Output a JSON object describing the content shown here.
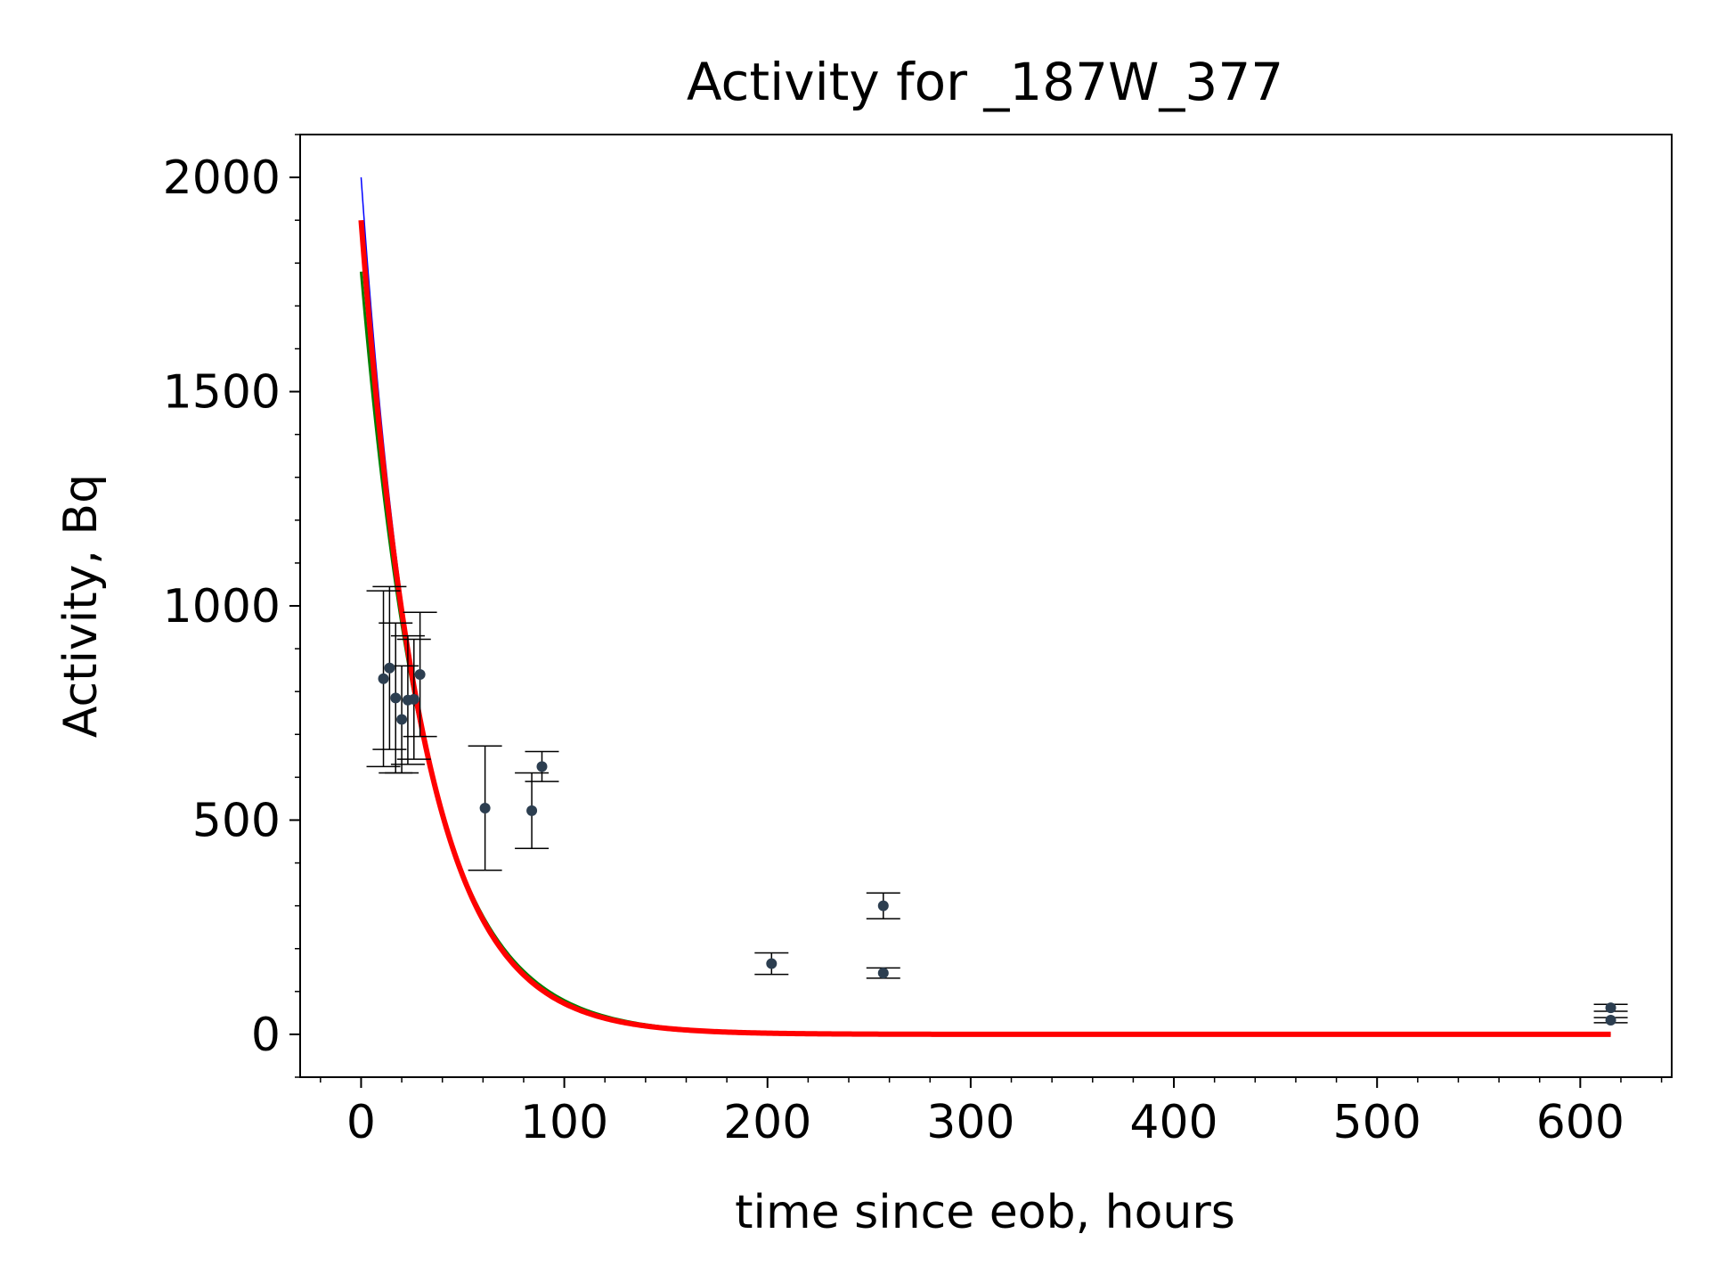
{
  "chart_data": {
    "type": "scatter",
    "title": "Activity for _187W_377",
    "xlabel": "time since eob, hours",
    "ylabel": "Activity, Bq",
    "xlim": [
      -30,
      645
    ],
    "ylim": [
      -100,
      2100
    ],
    "xticks": [
      0,
      100,
      200,
      300,
      400,
      500,
      600
    ],
    "xtick_labels": [
      "0",
      "100",
      "200",
      "300",
      "400",
      "500",
      "600"
    ],
    "yticks": [
      0,
      500,
      1000,
      1500,
      2000
    ],
    "ytick_labels": [
      "0",
      "500",
      "1000",
      "1500",
      "2000"
    ],
    "grid": false,
    "legend": "none",
    "measurements": {
      "color": "#2c3e50",
      "points": [
        {
          "x": 11,
          "y": 830,
          "err": 205
        },
        {
          "x": 14,
          "y": 855,
          "err": 190
        },
        {
          "x": 17,
          "y": 785,
          "err": 175
        },
        {
          "x": 20,
          "y": 735,
          "err": 125
        },
        {
          "x": 23,
          "y": 780,
          "err": 150
        },
        {
          "x": 26,
          "y": 782,
          "err": 140
        },
        {
          "x": 29,
          "y": 840,
          "err": 145
        },
        {
          "x": 61,
          "y": 528,
          "err": 145
        },
        {
          "x": 84,
          "y": 522,
          "err": 88
        },
        {
          "x": 89,
          "y": 625,
          "err": 35
        },
        {
          "x": 202,
          "y": 165,
          "err": 25
        },
        {
          "x": 257,
          "y": 300,
          "err": 30
        },
        {
          "x": 257,
          "y": 143,
          "err": 12
        },
        {
          "x": 615,
          "y": 62,
          "err": 8
        },
        {
          "x": 615,
          "y": 33,
          "err": 6
        }
      ]
    },
    "fit_curves": [
      {
        "color": "#0000ff",
        "x_range": [
          0,
          615
        ],
        "y0": 2000,
        "half_life_hours": 20.5
      },
      {
        "color": "#008000",
        "x_range": [
          0,
          615
        ],
        "y0": 1780,
        "half_life_hours": 22.3
      },
      {
        "color": "#ff0000",
        "x_range": [
          0,
          615
        ],
        "y0": 1900,
        "half_life_hours": 21.2
      }
    ]
  }
}
